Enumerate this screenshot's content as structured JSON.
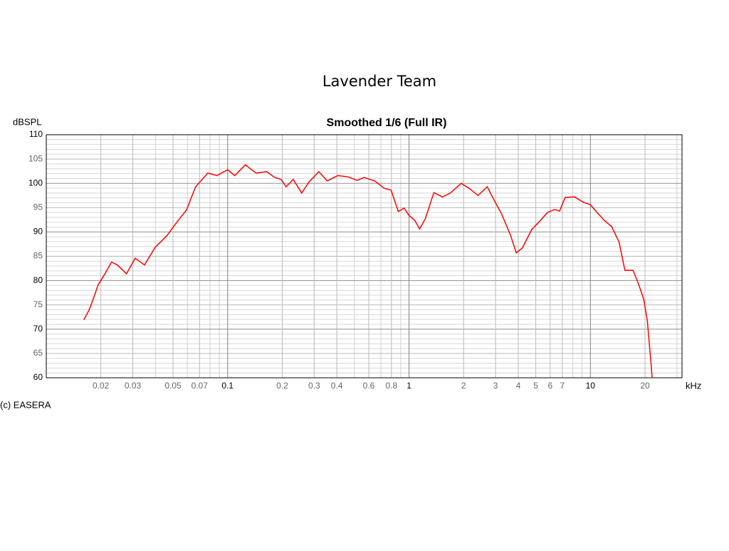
{
  "heading": "Lavender Team",
  "chart_data": {
    "type": "line",
    "title": "Smoothed 1/6 (Full IR)",
    "y_label": "dBSPL",
    "x_label": "kHz",
    "note": "(c) EASERA",
    "xscale": "log",
    "grid": true,
    "color": "#ff0000",
    "xlim": [
      0.01,
      32
    ],
    "ylim": [
      60,
      110
    ],
    "xticks": [
      0.02,
      0.03,
      0.05,
      0.07,
      0.1,
      0.2,
      0.3,
      0.4,
      0.6,
      0.8,
      1,
      2,
      3,
      4,
      5,
      6,
      7,
      10,
      20
    ],
    "xticks_minor": [
      0.04,
      0.06,
      0.08,
      0.09,
      0.5,
      0.7,
      0.9,
      8,
      9,
      30
    ],
    "yticks": [
      60,
      65,
      70,
      75,
      80,
      85,
      90,
      95,
      100,
      105,
      110
    ],
    "yticks_minor": [
      61,
      62,
      63,
      64,
      66,
      67,
      68,
      69,
      71,
      72,
      73,
      74,
      76,
      77,
      78,
      79,
      81,
      82,
      83,
      84,
      86,
      87,
      88,
      89,
      91,
      92,
      93,
      94,
      96,
      97,
      98,
      99,
      101,
      102,
      103,
      104,
      106,
      107,
      108,
      109
    ],
    "x": [
      0.0161,
      0.0172,
      0.018,
      0.0193,
      0.021,
      0.0229,
      0.0247,
      0.0277,
      0.0309,
      0.0348,
      0.0398,
      0.0464,
      0.0532,
      0.0593,
      0.0666,
      0.0777,
      0.0873,
      0.1,
      0.1094,
      0.1253,
      0.1435,
      0.1643,
      0.18,
      0.197,
      0.21,
      0.23,
      0.256,
      0.28,
      0.318,
      0.354,
      0.405,
      0.464,
      0.517,
      0.565,
      0.647,
      0.728,
      0.797,
      0.873,
      0.939,
      1.0,
      1.076,
      1.144,
      1.23,
      1.37,
      1.53,
      1.69,
      1.94,
      2.16,
      2.4,
      2.7,
      2.96,
      3.24,
      3.63,
      3.9,
      4.22,
      4.75,
      5.29,
      5.8,
      6.35,
      6.76,
      7.26,
      8.2,
      9.15,
      10,
      10.9,
      12.0,
      13.1,
      14.4,
      15.5,
      17.2,
      18.5,
      19.7,
      20.6,
      21.6,
      21.9
    ],
    "values": [
      71.9,
      73.9,
      75.8,
      79.1,
      81.3,
      83.8,
      83.2,
      81.4,
      84.6,
      83.2,
      86.8,
      89.3,
      92.3,
      94.5,
      99.3,
      102.1,
      101.6,
      102.8,
      101.6,
      103.8,
      102.1,
      102.4,
      101.3,
      100.8,
      99.3,
      100.8,
      98.0,
      100.2,
      102.4,
      100.5,
      101.6,
      101.3,
      100.6,
      101.2,
      100.5,
      99.0,
      98.6,
      94.2,
      94.9,
      93.4,
      92.4,
      90.6,
      92.7,
      98.1,
      97.2,
      98.0,
      100.0,
      98.9,
      97.5,
      99.3,
      96.4,
      93.7,
      89.3,
      85.7,
      86.7,
      90.5,
      92.3,
      94.0,
      94.6,
      94.3,
      97.1,
      97.2,
      96.1,
      95.6,
      94.0,
      92.3,
      91.1,
      87.9,
      82.1,
      82.1,
      79.1,
      76.1,
      71.7,
      62.9,
      60
    ]
  }
}
